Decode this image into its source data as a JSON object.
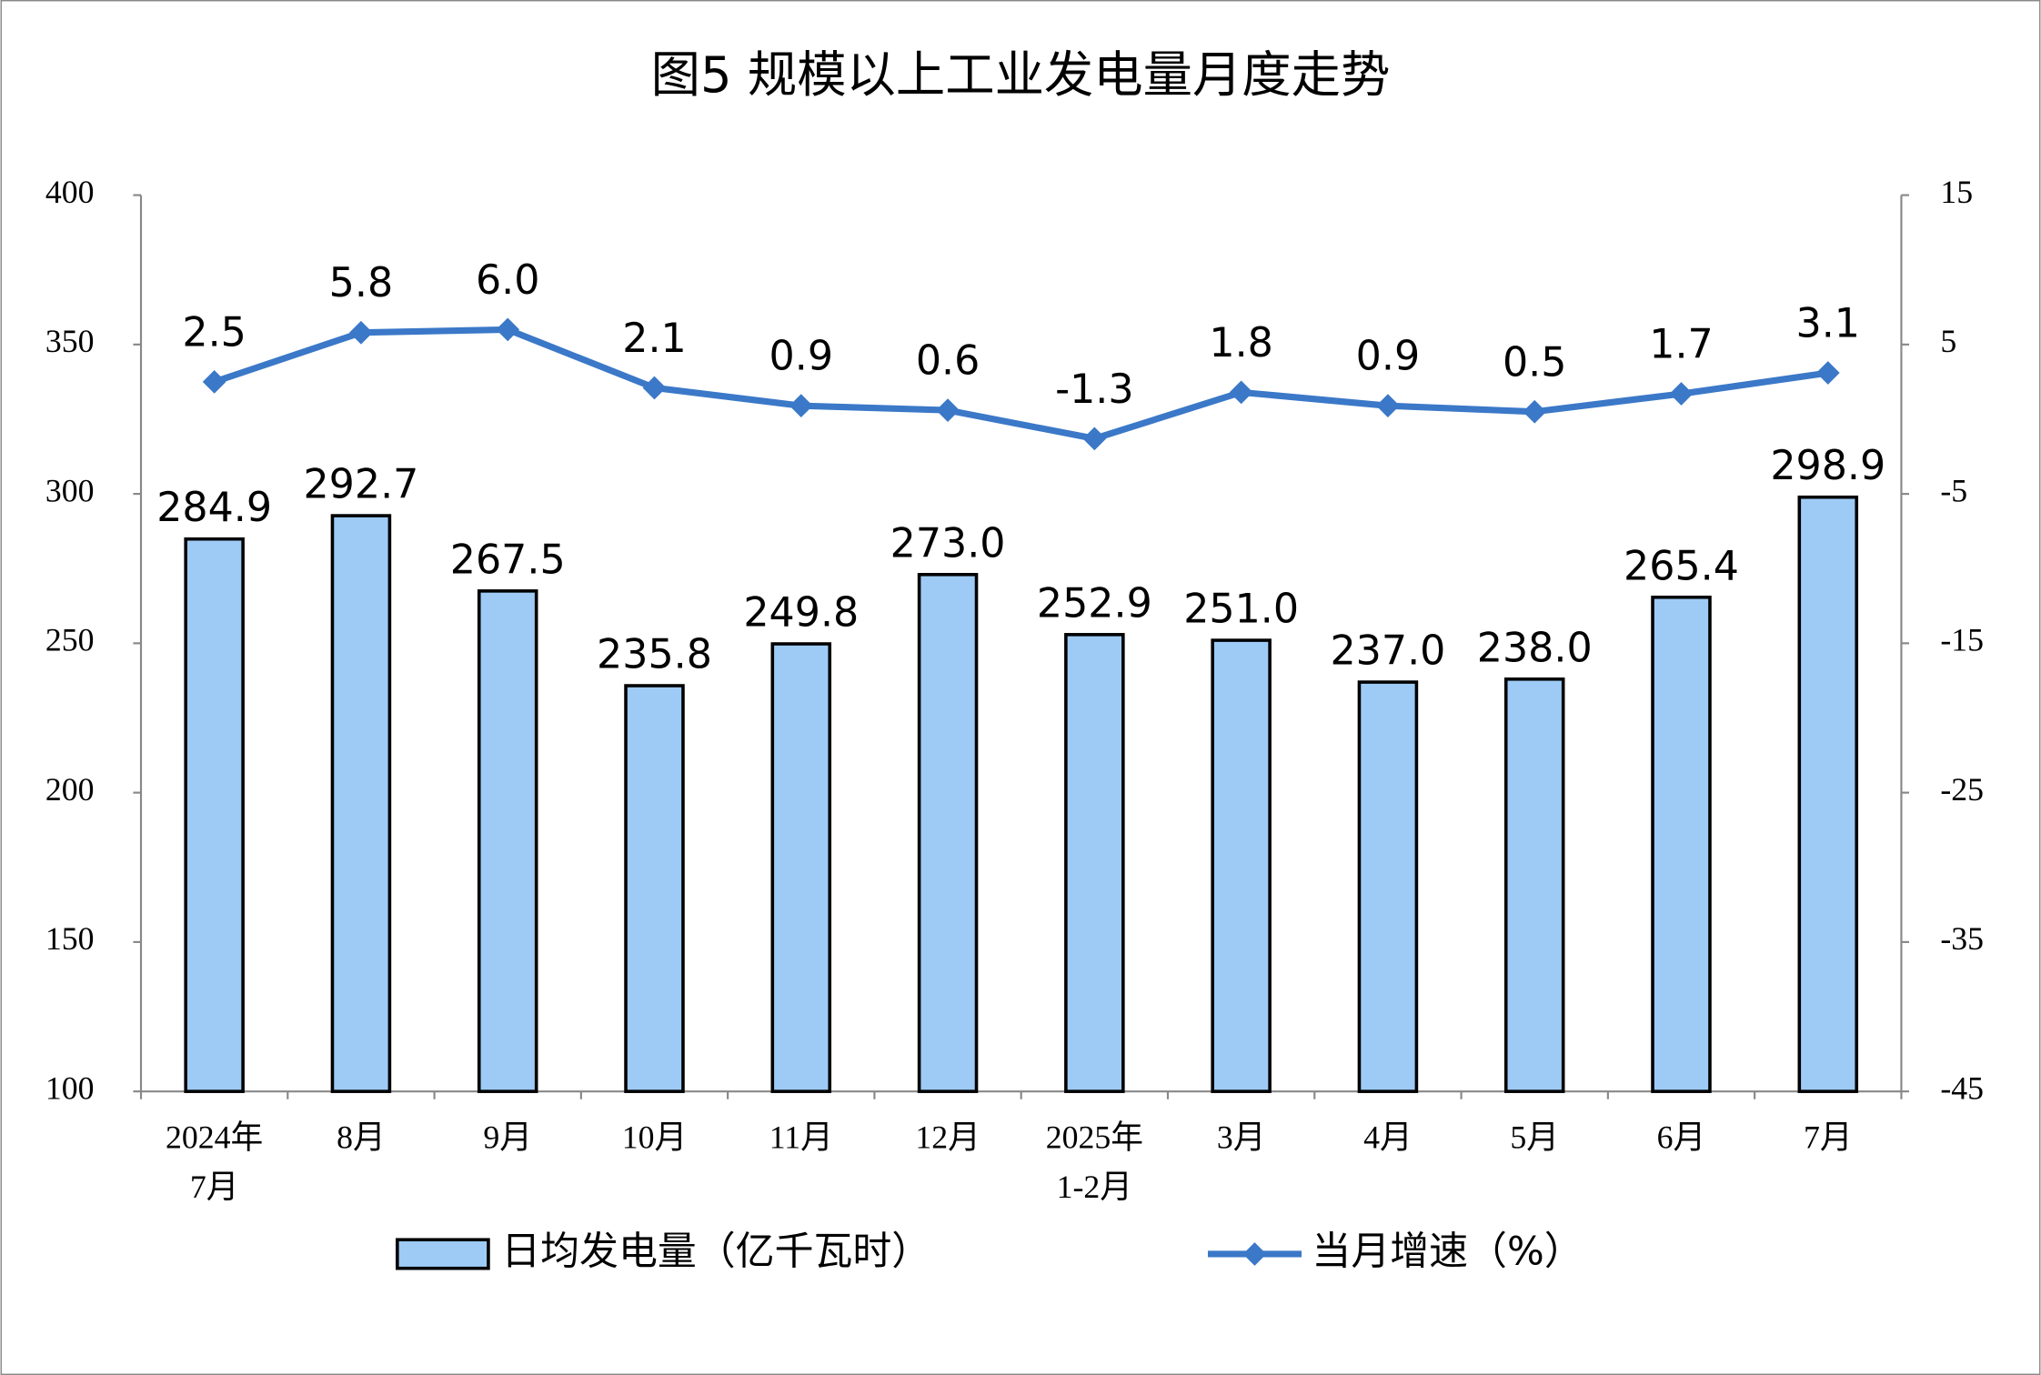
{
  "chart_data": {
    "type": "bar-line",
    "title": "图5  规模以上工业发电量月度走势",
    "categories": [
      [
        "2024年",
        "7月"
      ],
      [
        "8月"
      ],
      [
        "9月"
      ],
      [
        "10月"
      ],
      [
        "11月"
      ],
      [
        "12月"
      ],
      [
        "2025年",
        "1-2月"
      ],
      [
        "3月"
      ],
      [
        "4月"
      ],
      [
        "5月"
      ],
      [
        "6月"
      ],
      [
        "7月"
      ]
    ],
    "series": [
      {
        "name": "日均发电量（亿千瓦时）",
        "type": "bar",
        "color": "#9dcbf6",
        "axis": "y",
        "values": [
          284.9,
          292.7,
          267.5,
          235.8,
          249.8,
          273.0,
          252.9,
          251.0,
          237.0,
          238.0,
          265.4,
          298.9
        ],
        "value_labels": [
          "284.9",
          "292.7",
          "267.5",
          "235.8",
          "249.8",
          "273.0",
          "252.9",
          "251.0",
          "237.0",
          "238.0",
          "265.4",
          "298.9"
        ]
      },
      {
        "name": "当月增速（%）",
        "type": "line",
        "color": "#3b78c8",
        "axis": "y2",
        "values": [
          2.5,
          5.8,
          6.0,
          2.1,
          0.9,
          0.6,
          -1.3,
          1.8,
          0.9,
          0.5,
          1.7,
          3.1
        ],
        "value_labels": [
          "2.5",
          "5.8",
          "6.0",
          "2.1",
          "0.9",
          "0.6",
          "-1.3",
          "1.8",
          "0.9",
          "0.5",
          "1.7",
          "3.1"
        ]
      }
    ],
    "ylim": [
      100,
      400
    ],
    "yticks": [
      100,
      150,
      200,
      250,
      300,
      350,
      400
    ],
    "y2lim": [
      -45,
      15
    ],
    "y2ticks": [
      -45,
      -35,
      -25,
      -15,
      -5,
      5,
      15
    ],
    "grid": false,
    "legend": "bottom"
  }
}
